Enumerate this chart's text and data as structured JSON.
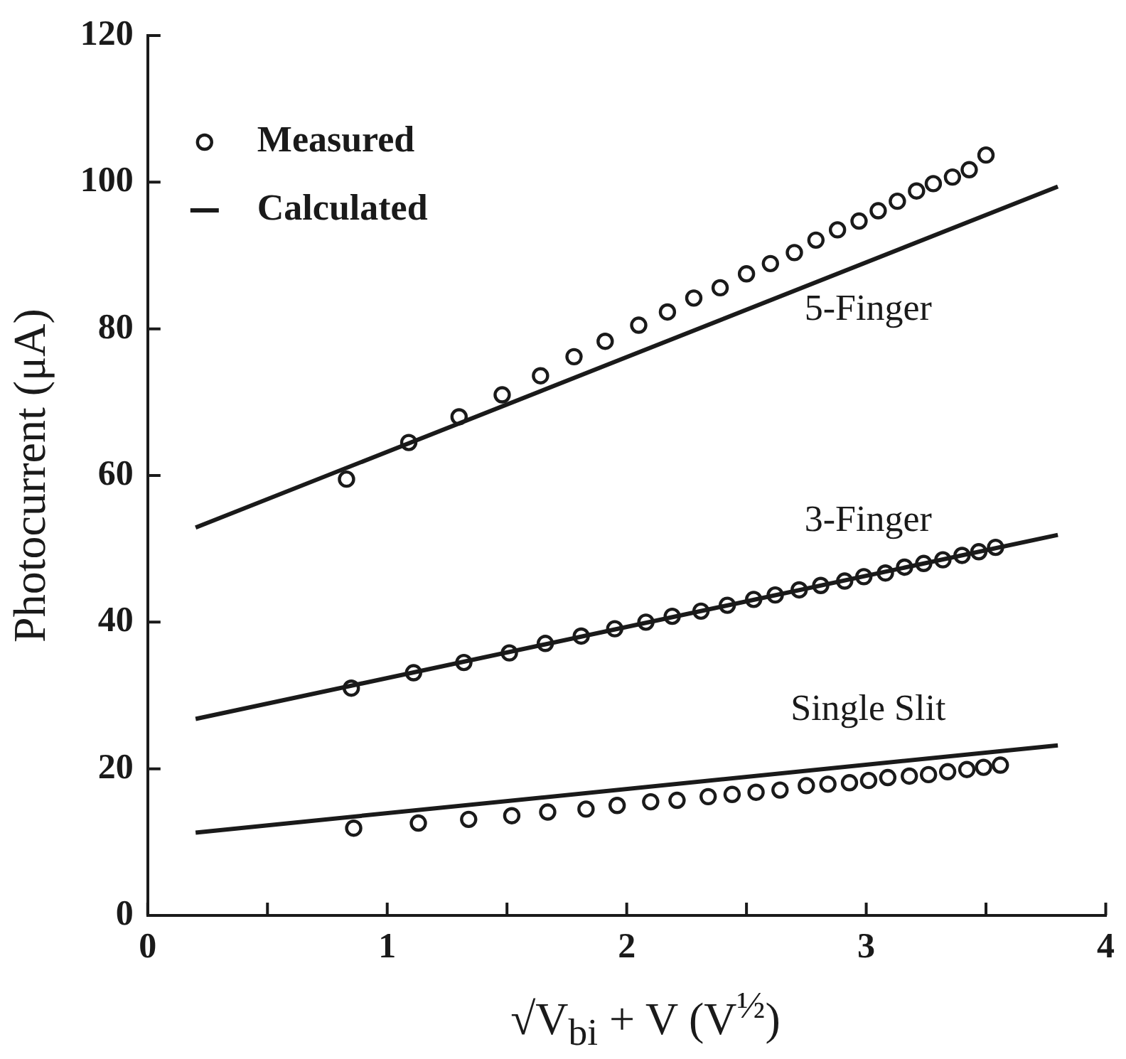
{
  "chart_data": {
    "type": "scatter",
    "xlabel": "√V$_{bi}$ + V (V$^{½}$)",
    "ylabel": "Photocurrent (μA)",
    "xlim": [
      0,
      4
    ],
    "ylim": [
      0,
      120
    ],
    "xticks": [
      0,
      {
        "value": 0.5,
        "label": null
      },
      1,
      {
        "value": 1.5,
        "label": null
      },
      2,
      {
        "value": 2.5,
        "label": null
      },
      3,
      {
        "value": 3.5,
        "label": null
      },
      4
    ],
    "yticks": [
      0,
      20,
      40,
      60,
      80,
      100,
      120
    ],
    "grid": false,
    "legend": "top left",
    "series": [
      {
        "name": "Measured",
        "type": "scatter",
        "marker": "circle",
        "color": "#1a1a1a",
        "x": [
          0.83,
          1.09,
          1.3,
          1.48,
          1.64,
          1.78,
          1.91,
          2.05,
          2.17,
          2.28,
          2.39,
          2.5,
          2.6,
          2.7,
          2.79,
          2.88,
          2.97,
          3.05,
          3.13,
          3.21,
          3.28,
          3.36,
          3.43,
          3.5
        ],
        "values": [
          59.5,
          64.5,
          68,
          71,
          73.6,
          76.2,
          78.3,
          80.5,
          82.3,
          84.2,
          85.6,
          87.5,
          88.9,
          90.4,
          92.1,
          93.5,
          94.7,
          96.1,
          97.4,
          98.8,
          99.8,
          100.7,
          101.7,
          103.7
        ]
      },
      {
        "type": "scatter",
        "marker": "circle",
        "color": "#1a1a1a",
        "x": [
          0.85,
          1.11,
          1.32,
          1.51,
          1.66,
          1.81,
          1.95,
          2.08,
          2.19,
          2.31,
          2.42,
          2.53,
          2.62,
          2.72,
          2.81,
          2.91,
          2.99,
          3.08,
          3.16,
          3.24,
          3.32,
          3.4,
          3.47,
          3.54
        ],
        "values": [
          31,
          33.1,
          34.5,
          35.8,
          37.1,
          38.1,
          39.1,
          40,
          40.8,
          41.5,
          42.3,
          43.1,
          43.7,
          44.4,
          45,
          45.6,
          46.2,
          46.7,
          47.5,
          48,
          48.5,
          49.1,
          49.6,
          50.2
        ]
      },
      {
        "type": "scatter",
        "marker": "circle",
        "color": "#1a1a1a",
        "x": [
          0.86,
          1.13,
          1.34,
          1.52,
          1.67,
          1.83,
          1.96,
          2.1,
          2.21,
          2.34,
          2.44,
          2.54,
          2.64,
          2.75,
          2.84,
          2.93,
          3.01,
          3.09,
          3.18,
          3.26,
          3.34,
          3.42,
          3.49,
          3.56
        ],
        "values": [
          11.9,
          12.6,
          13.1,
          13.6,
          14.1,
          14.5,
          15,
          15.5,
          15.7,
          16.2,
          16.5,
          16.8,
          17.1,
          17.7,
          17.9,
          18.1,
          18.4,
          18.8,
          19,
          19.2,
          19.6,
          19.9,
          20.2,
          20.5
        ]
      },
      {
        "name": "Calculated",
        "type": "line",
        "marker": "none",
        "line_style": "solid",
        "color": "#1a1a1a",
        "x": [
          0.2,
          3.8
        ],
        "values": [
          52.9,
          99.4
        ]
      },
      {
        "type": "line",
        "marker": "none",
        "line_style": "solid",
        "color": "#1a1a1a",
        "x": [
          0.2,
          3.8
        ],
        "values": [
          26.8,
          51.9
        ]
      },
      {
        "type": "line",
        "marker": "none",
        "line_style": "solid",
        "color": "#1a1a1a",
        "x": [
          0.2,
          3.8
        ],
        "values": [
          11.3,
          23.2
        ]
      }
    ],
    "annotations": [
      "5-Finger",
      "3-Finger",
      "Single Slit"
    ]
  }
}
